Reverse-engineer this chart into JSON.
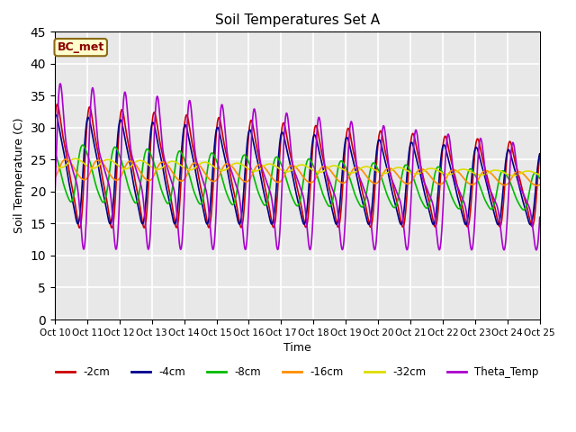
{
  "title": "Soil Temperatures Set A",
  "xlabel": "Time",
  "ylabel": "Soil Temperature (C)",
  "xlim_start": 0,
  "xlim_end": 360,
  "ylim": [
    0,
    45
  ],
  "yticks": [
    0,
    5,
    10,
    15,
    20,
    25,
    30,
    35,
    40,
    45
  ],
  "xtick_labels": [
    "Oct 10",
    "Oct 11",
    "Oct 12",
    "Oct 13",
    "Oct 14",
    "Oct 15",
    "Oct 16",
    "Oct 17",
    "Oct 18",
    "Oct 19",
    "Oct 20",
    "Oct 21",
    "Oct 22",
    "Oct 23",
    "Oct 24",
    "Oct 25"
  ],
  "series": [
    {
      "label": "-2cm",
      "color": "#CC0000",
      "linewidth": 1.2,
      "mean_start": 24.0,
      "mean_end": 21.0,
      "amp_start": 12.0,
      "amp_end": 8.0,
      "phase_shift": 0.5,
      "asymmetry": 0.35
    },
    {
      "label": "-4cm",
      "color": "#00008B",
      "linewidth": 1.2,
      "mean_start": 23.5,
      "mean_end": 20.5,
      "amp_start": 10.5,
      "amp_end": 7.0,
      "phase_shift": 0.8,
      "asymmetry": 0.3
    },
    {
      "label": "-8cm",
      "color": "#00BB00",
      "linewidth": 1.2,
      "mean_start": 23.0,
      "mean_end": 20.0,
      "amp_start": 5.5,
      "amp_end": 3.5,
      "phase_shift": 2.0,
      "asymmetry": 0.2
    },
    {
      "label": "-16cm",
      "color": "#FF8C00",
      "linewidth": 1.2,
      "mean_start": 23.5,
      "mean_end": 22.0,
      "amp_start": 1.8,
      "amp_end": 1.2,
      "phase_shift": 5.5,
      "asymmetry": 0.1
    },
    {
      "label": "-32cm",
      "color": "#DDDD00",
      "linewidth": 1.2,
      "mean_start": 24.5,
      "mean_end": 22.8,
      "amp_start": 0.8,
      "amp_end": 0.4,
      "phase_shift": 10.0,
      "asymmetry": 0.05
    },
    {
      "label": "Theta_Temp",
      "color": "#AA00CC",
      "linewidth": 1.2,
      "mean_start": 24.0,
      "mean_end": 19.0,
      "amp_start": 16.0,
      "amp_end": 10.0,
      "phase_shift": -0.2,
      "asymmetry": 0.6
    }
  ],
  "annotation_text": "BC_met",
  "background_color": "#E8E8E8",
  "facecolor": "#FFFFFF",
  "grid_color": "#FFFFFF",
  "num_points": 2000,
  "period": 24.0
}
